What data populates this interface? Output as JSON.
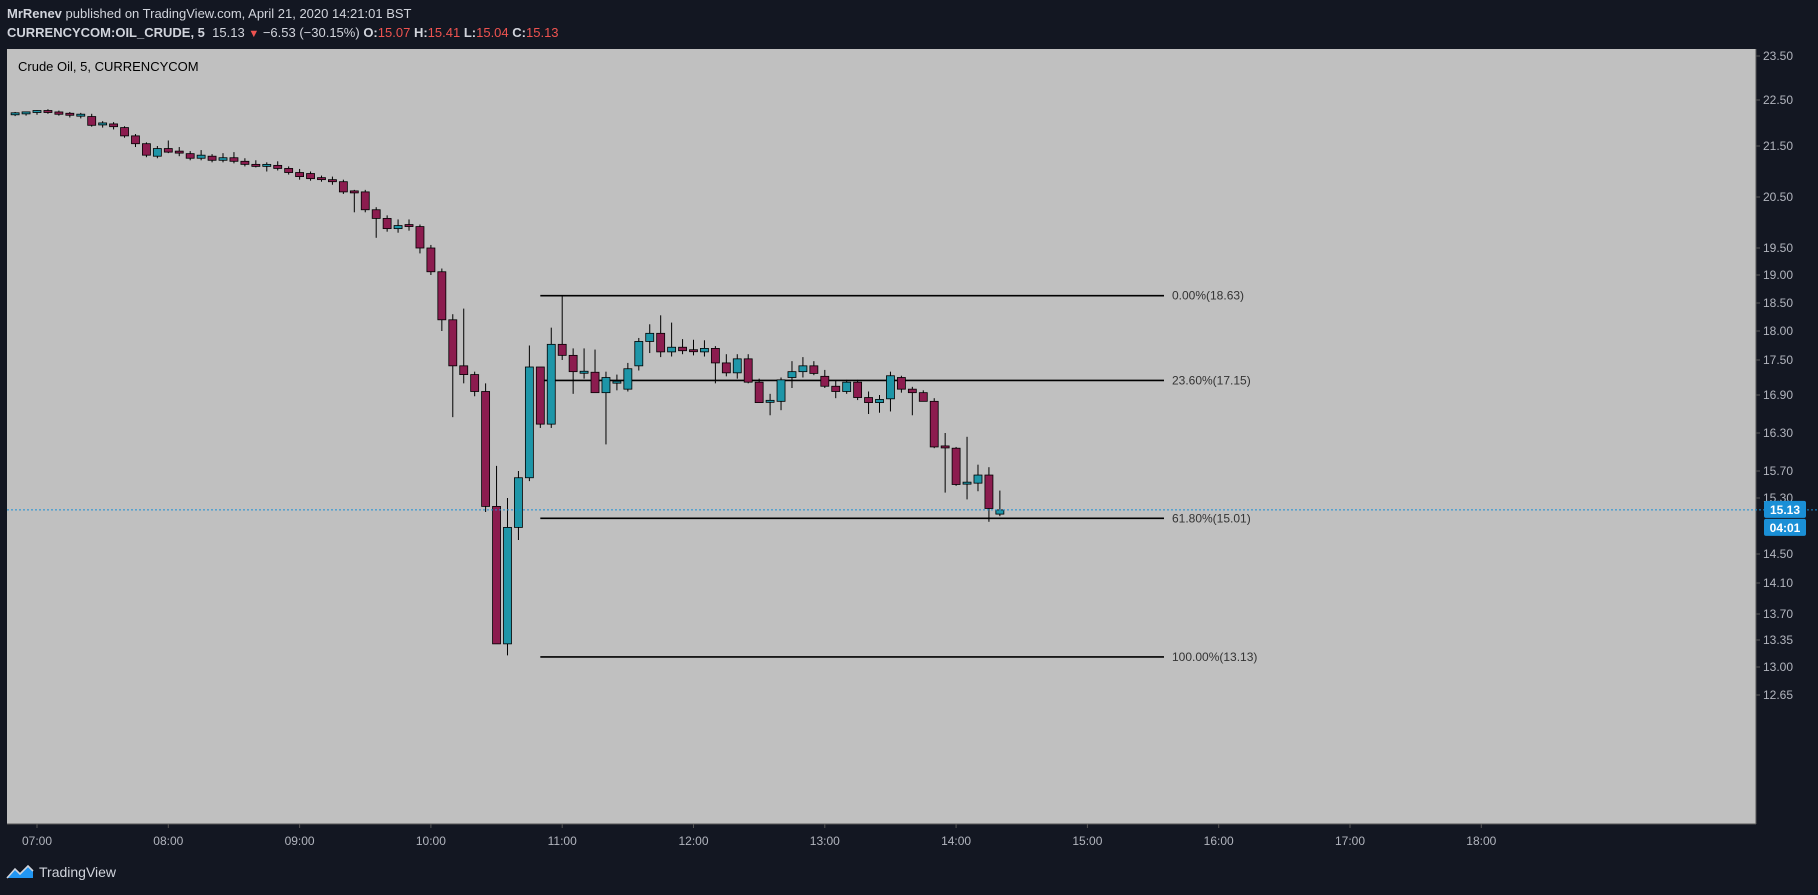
{
  "header": {
    "author": "MrRenev",
    "published_text": "published on TradingView.com, April 21, 2020 14:21:01 BST",
    "symbol": "CURRENCYCOM:OIL_CRUDE, 5",
    "last": "15.13",
    "change": "−6.53 (−30.15%)",
    "o_label": "O:",
    "o_value": "15.07",
    "h_label": "H:",
    "h_value": "15.41",
    "l_label": "L:",
    "l_value": "15.04",
    "c_label": "C:",
    "c_value": "15.13"
  },
  "footer": {
    "brand": "TradingView"
  },
  "colors": {
    "chart_bg": "#c0c0c0",
    "up": "#1e96a8",
    "down": "#8c1c4f",
    "fib_line": "#000000",
    "price_tag": "#1a8fd6"
  },
  "chart_data": {
    "type": "candlestick",
    "title": "Crude Oil, 5, CURRENCYCOM",
    "y_ticks": [
      "23.50",
      "22.50",
      "21.50",
      "20.50",
      "19.50",
      "19.00",
      "18.50",
      "18.00",
      "17.50",
      "16.90",
      "16.30",
      "15.70",
      "15.30",
      "14.50",
      "14.10",
      "13.70",
      "13.35",
      "13.00",
      "12.65"
    ],
    "x_ticks": [
      "07:00",
      "08:00",
      "09:00",
      "10:00",
      "11:00",
      "12:00",
      "13:00",
      "14:00",
      "15:00",
      "16:00",
      "17:00",
      "18:00"
    ],
    "last_price": "15.13",
    "countdown": "04:01",
    "fib_levels": [
      {
        "label": "0.00%(18.63)",
        "price": 18.63
      },
      {
        "label": "23.60%(17.15)",
        "price": 17.15
      },
      {
        "label": "61.80%(15.01)",
        "price": 15.01
      },
      {
        "label": "100.00%(13.13)",
        "price": 13.13
      }
    ],
    "fib_time_range": [
      "10:50",
      "15:35"
    ],
    "candles": [
      {
        "t": "06:50",
        "o": 22.17,
        "h": 22.24,
        "l": 22.15,
        "c": 22.2
      },
      {
        "t": "06:55",
        "o": 22.2,
        "h": 22.25,
        "l": 22.16,
        "c": 22.22
      },
      {
        "t": "07:00",
        "o": 22.22,
        "h": 22.28,
        "l": 22.18,
        "c": 22.25
      },
      {
        "t": "07:05",
        "o": 22.25,
        "h": 22.3,
        "l": 22.2,
        "c": 22.24
      },
      {
        "t": "07:10",
        "o": 22.24,
        "h": 22.27,
        "l": 22.16,
        "c": 22.19
      },
      {
        "t": "07:15",
        "o": 22.19,
        "h": 22.24,
        "l": 22.12,
        "c": 22.15
      },
      {
        "t": "07:20",
        "o": 22.15,
        "h": 22.22,
        "l": 22.1,
        "c": 22.17
      },
      {
        "t": "07:25",
        "o": 22.14,
        "h": 22.2,
        "l": 21.92,
        "c": 21.95
      },
      {
        "t": "07:30",
        "o": 21.95,
        "h": 22.04,
        "l": 21.9,
        "c": 21.98
      },
      {
        "t": "07:35",
        "o": 21.98,
        "h": 22.02,
        "l": 21.86,
        "c": 21.92
      },
      {
        "t": "07:40",
        "o": 21.9,
        "h": 21.93,
        "l": 21.68,
        "c": 21.72
      },
      {
        "t": "07:45",
        "o": 21.72,
        "h": 21.76,
        "l": 21.48,
        "c": 21.55
      },
      {
        "t": "07:50",
        "o": 21.55,
        "h": 21.58,
        "l": 21.28,
        "c": 21.32
      },
      {
        "t": "07:55",
        "o": 21.3,
        "h": 21.5,
        "l": 21.26,
        "c": 21.45
      },
      {
        "t": "08:00",
        "o": 21.45,
        "h": 21.62,
        "l": 21.36,
        "c": 21.38
      },
      {
        "t": "08:05",
        "o": 21.38,
        "h": 21.48,
        "l": 21.3,
        "c": 21.35
      },
      {
        "t": "08:10",
        "o": 21.35,
        "h": 21.4,
        "l": 21.22,
        "c": 21.26
      },
      {
        "t": "08:15",
        "o": 21.26,
        "h": 21.42,
        "l": 21.22,
        "c": 21.32
      },
      {
        "t": "08:20",
        "o": 21.3,
        "h": 21.34,
        "l": 21.18,
        "c": 21.22
      },
      {
        "t": "08:25",
        "o": 21.22,
        "h": 21.36,
        "l": 21.18,
        "c": 21.27
      },
      {
        "t": "08:30",
        "o": 21.27,
        "h": 21.38,
        "l": 21.16,
        "c": 21.2
      },
      {
        "t": "08:35",
        "o": 21.2,
        "h": 21.26,
        "l": 21.1,
        "c": 21.14
      },
      {
        "t": "08:40",
        "o": 21.14,
        "h": 21.22,
        "l": 21.08,
        "c": 21.1
      },
      {
        "t": "08:45",
        "o": 21.1,
        "h": 21.18,
        "l": 21.0,
        "c": 21.12
      },
      {
        "t": "08:50",
        "o": 21.12,
        "h": 21.2,
        "l": 21.02,
        "c": 21.06
      },
      {
        "t": "08:55",
        "o": 21.06,
        "h": 21.1,
        "l": 20.94,
        "c": 20.98
      },
      {
        "t": "09:00",
        "o": 20.98,
        "h": 21.05,
        "l": 20.84,
        "c": 20.9
      },
      {
        "t": "09:05",
        "o": 20.96,
        "h": 21.0,
        "l": 20.82,
        "c": 20.86
      },
      {
        "t": "09:10",
        "o": 20.86,
        "h": 20.92,
        "l": 20.8,
        "c": 20.84
      },
      {
        "t": "09:15",
        "o": 20.84,
        "h": 20.9,
        "l": 20.74,
        "c": 20.8
      },
      {
        "t": "09:20",
        "o": 20.8,
        "h": 20.84,
        "l": 20.56,
        "c": 20.6
      },
      {
        "t": "09:25",
        "o": 20.6,
        "h": 20.64,
        "l": 20.2,
        "c": 20.58
      },
      {
        "t": "09:30",
        "o": 20.6,
        "h": 20.64,
        "l": 20.2,
        "c": 20.25
      },
      {
        "t": "09:35",
        "o": 20.25,
        "h": 20.3,
        "l": 19.7,
        "c": 20.08
      },
      {
        "t": "09:40",
        "o": 20.08,
        "h": 20.14,
        "l": 19.82,
        "c": 19.88
      },
      {
        "t": "09:45",
        "o": 19.88,
        "h": 20.06,
        "l": 19.8,
        "c": 19.94
      },
      {
        "t": "09:50",
        "o": 19.94,
        "h": 20.06,
        "l": 19.84,
        "c": 19.92
      },
      {
        "t": "09:55",
        "o": 19.92,
        "h": 19.96,
        "l": 19.4,
        "c": 19.5
      },
      {
        "t": "10:00",
        "o": 19.5,
        "h": 19.56,
        "l": 19.0,
        "c": 19.06
      },
      {
        "t": "10:05",
        "o": 19.06,
        "h": 19.12,
        "l": 18.0,
        "c": 18.2
      },
      {
        "t": "10:10",
        "o": 18.2,
        "h": 18.3,
        "l": 16.55,
        "c": 17.4
      },
      {
        "t": "10:15",
        "o": 17.4,
        "h": 18.4,
        "l": 17.1,
        "c": 17.25
      },
      {
        "t": "10:20",
        "o": 17.25,
        "h": 17.3,
        "l": 16.88,
        "c": 16.96
      },
      {
        "t": "10:25",
        "o": 16.96,
        "h": 17.1,
        "l": 15.1,
        "c": 15.18
      },
      {
        "t": "10:30",
        "o": 15.18,
        "h": 15.78,
        "l": 13.3,
        "c": 13.3
      },
      {
        "t": "10:35",
        "o": 13.3,
        "h": 15.3,
        "l": 13.15,
        "c": 14.88
      },
      {
        "t": "10:40",
        "o": 14.88,
        "h": 15.7,
        "l": 14.7,
        "c": 15.6
      },
      {
        "t": "10:45",
        "o": 15.6,
        "h": 17.75,
        "l": 15.55,
        "c": 17.38
      },
      {
        "t": "10:50",
        "o": 17.38,
        "h": 17.38,
        "l": 16.38,
        "c": 16.44
      },
      {
        "t": "10:55",
        "o": 16.44,
        "h": 18.06,
        "l": 16.38,
        "c": 17.77
      },
      {
        "t": "11:00",
        "o": 17.77,
        "h": 18.63,
        "l": 17.5,
        "c": 17.58
      },
      {
        "t": "11:05",
        "o": 17.58,
        "h": 17.7,
        "l": 16.92,
        "c": 17.3
      },
      {
        "t": "11:10",
        "o": 17.26,
        "h": 17.7,
        "l": 17.18,
        "c": 17.29
      },
      {
        "t": "11:15",
        "o": 17.29,
        "h": 17.68,
        "l": 16.95,
        "c": 16.94
      },
      {
        "t": "11:20",
        "o": 16.94,
        "h": 17.3,
        "l": 16.12,
        "c": 17.2
      },
      {
        "t": "11:25",
        "o": 17.1,
        "h": 17.25,
        "l": 16.98,
        "c": 17.12
      },
      {
        "t": "11:30",
        "o": 17.0,
        "h": 17.45,
        "l": 16.96,
        "c": 17.35
      },
      {
        "t": "11:35",
        "o": 17.4,
        "h": 17.88,
        "l": 17.32,
        "c": 17.82
      },
      {
        "t": "11:40",
        "o": 17.82,
        "h": 18.12,
        "l": 17.62,
        "c": 17.96
      },
      {
        "t": "11:45",
        "o": 17.96,
        "h": 18.28,
        "l": 17.55,
        "c": 17.64
      },
      {
        "t": "11:50",
        "o": 17.64,
        "h": 18.15,
        "l": 17.56,
        "c": 17.72
      },
      {
        "t": "11:55",
        "o": 17.72,
        "h": 17.86,
        "l": 17.6,
        "c": 17.66
      },
      {
        "t": "12:00",
        "o": 17.66,
        "h": 17.85,
        "l": 17.58,
        "c": 17.64
      },
      {
        "t": "12:05",
        "o": 17.64,
        "h": 17.84,
        "l": 17.56,
        "c": 17.7
      },
      {
        "t": "12:10",
        "o": 17.7,
        "h": 17.74,
        "l": 17.1,
        "c": 17.45
      },
      {
        "t": "12:15",
        "o": 17.45,
        "h": 17.6,
        "l": 17.22,
        "c": 17.28
      },
      {
        "t": "12:20",
        "o": 17.28,
        "h": 17.6,
        "l": 17.18,
        "c": 17.52
      },
      {
        "t": "12:25",
        "o": 17.52,
        "h": 17.6,
        "l": 17.1,
        "c": 17.12
      },
      {
        "t": "12:30",
        "o": 17.12,
        "h": 17.18,
        "l": 16.78,
        "c": 16.78
      },
      {
        "t": "12:35",
        "o": 16.78,
        "h": 16.92,
        "l": 16.58,
        "c": 16.8
      },
      {
        "t": "12:40",
        "o": 16.8,
        "h": 17.2,
        "l": 16.66,
        "c": 17.16
      },
      {
        "t": "12:45",
        "o": 17.2,
        "h": 17.48,
        "l": 17.02,
        "c": 17.3
      },
      {
        "t": "12:50",
        "o": 17.3,
        "h": 17.55,
        "l": 17.2,
        "c": 17.4
      },
      {
        "t": "12:55",
        "o": 17.4,
        "h": 17.48,
        "l": 17.24,
        "c": 17.27
      },
      {
        "t": "13:00",
        "o": 17.22,
        "h": 17.33,
        "l": 17.02,
        "c": 17.05
      },
      {
        "t": "13:05",
        "o": 17.05,
        "h": 17.14,
        "l": 16.85,
        "c": 16.96
      },
      {
        "t": "13:10",
        "o": 16.96,
        "h": 17.16,
        "l": 16.92,
        "c": 17.12
      },
      {
        "t": "13:15",
        "o": 17.12,
        "h": 17.16,
        "l": 16.82,
        "c": 16.86
      },
      {
        "t": "13:20",
        "o": 16.86,
        "h": 16.96,
        "l": 16.6,
        "c": 16.78
      },
      {
        "t": "13:25",
        "o": 16.78,
        "h": 16.9,
        "l": 16.62,
        "c": 16.83
      },
      {
        "t": "13:30",
        "o": 16.84,
        "h": 17.3,
        "l": 16.64,
        "c": 17.23
      },
      {
        "t": "13:35",
        "o": 17.2,
        "h": 17.23,
        "l": 16.94,
        "c": 17.0
      },
      {
        "t": "13:40",
        "o": 17.0,
        "h": 17.04,
        "l": 16.58,
        "c": 16.94
      },
      {
        "t": "13:45",
        "o": 16.94,
        "h": 16.98,
        "l": 16.8,
        "c": 16.8
      },
      {
        "t": "13:50",
        "o": 16.8,
        "h": 16.85,
        "l": 16.06,
        "c": 16.08
      },
      {
        "t": "13:55",
        "o": 16.08,
        "h": 16.3,
        "l": 15.38,
        "c": 16.06
      },
      {
        "t": "14:00",
        "o": 16.06,
        "h": 16.08,
        "l": 15.48,
        "c": 15.5
      },
      {
        "t": "14:05",
        "o": 15.5,
        "h": 16.24,
        "l": 15.28,
        "c": 15.52
      },
      {
        "t": "14:10",
        "o": 15.52,
        "h": 15.8,
        "l": 15.4,
        "c": 15.64
      },
      {
        "t": "14:15",
        "o": 15.64,
        "h": 15.76,
        "l": 14.96,
        "c": 15.15
      },
      {
        "t": "14:20",
        "o": 15.07,
        "h": 15.41,
        "l": 15.04,
        "c": 15.13
      }
    ]
  }
}
